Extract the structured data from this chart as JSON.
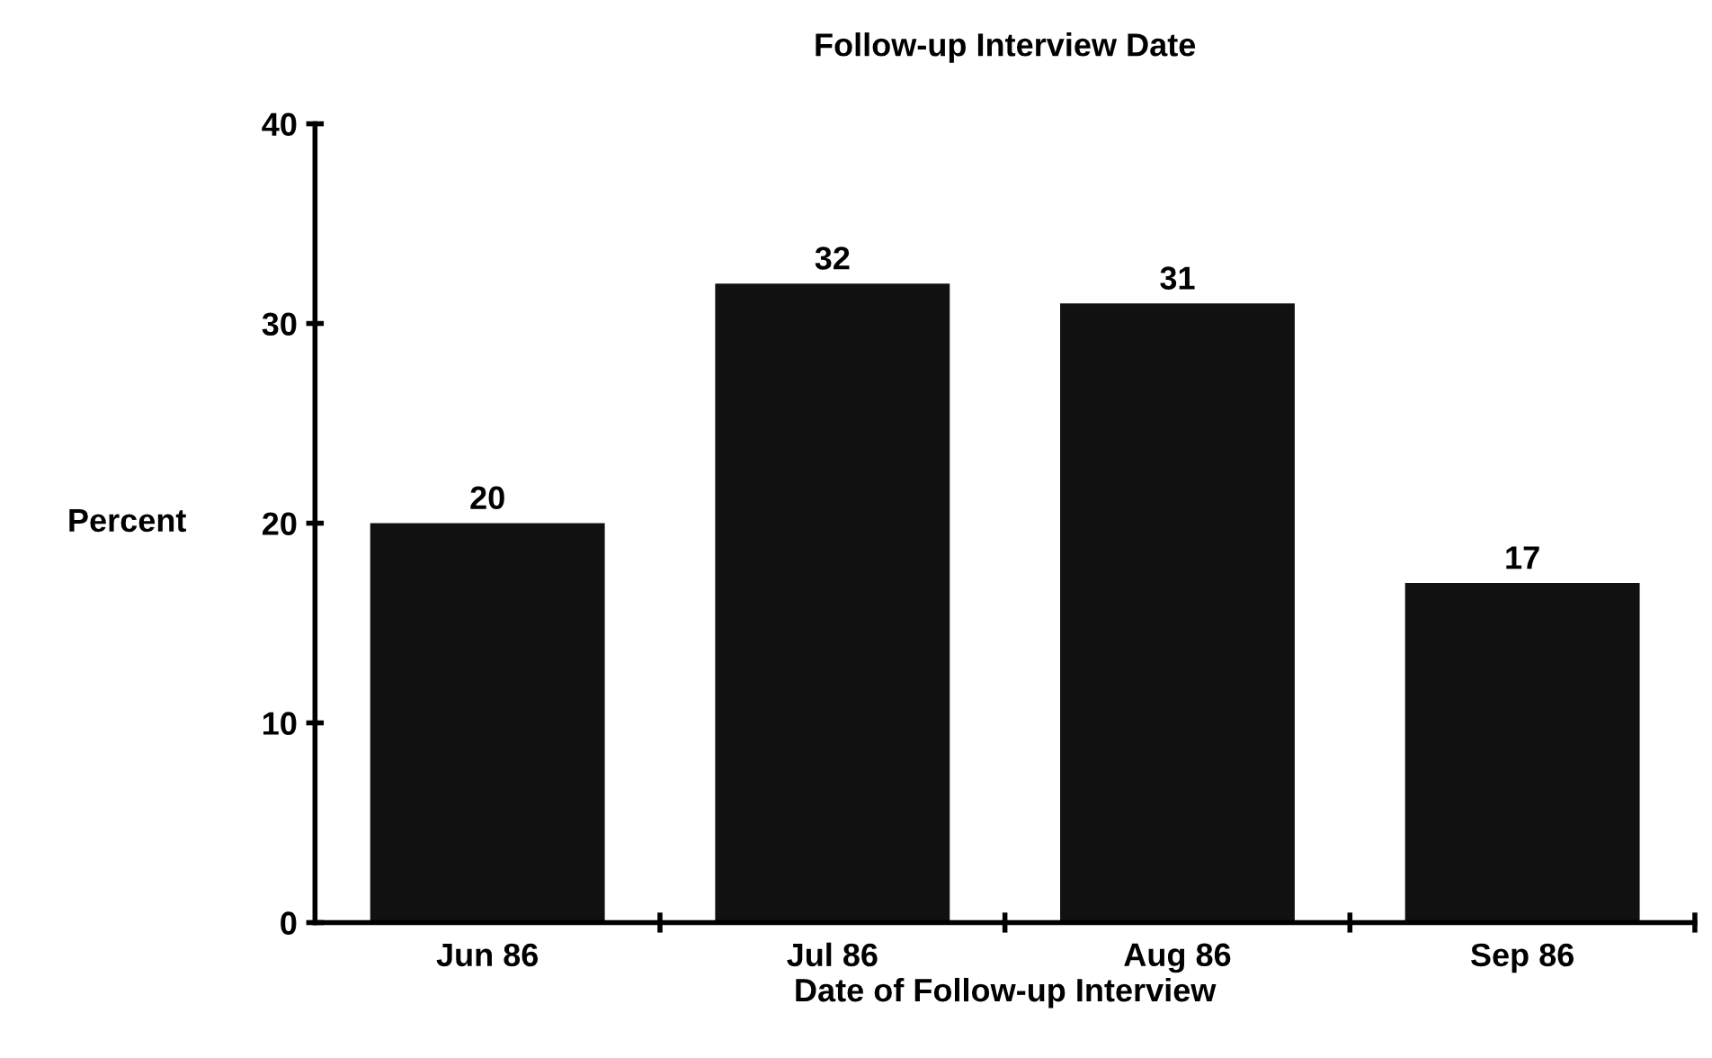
{
  "chart_data": {
    "type": "bar",
    "title": "Follow-up Interview Date",
    "xlabel": "Date of Follow-up Interview",
    "ylabel": "Percent",
    "categories": [
      "Jun 86",
      "Jul 86",
      "Aug 86",
      "Sep 86"
    ],
    "values": [
      20,
      32,
      31,
      17
    ],
    "color": "#111111",
    "ylim": [
      0,
      40
    ],
    "yticks": [
      0,
      10,
      20,
      30,
      40
    ],
    "data_labels": true,
    "grid": false,
    "legend": false
  }
}
